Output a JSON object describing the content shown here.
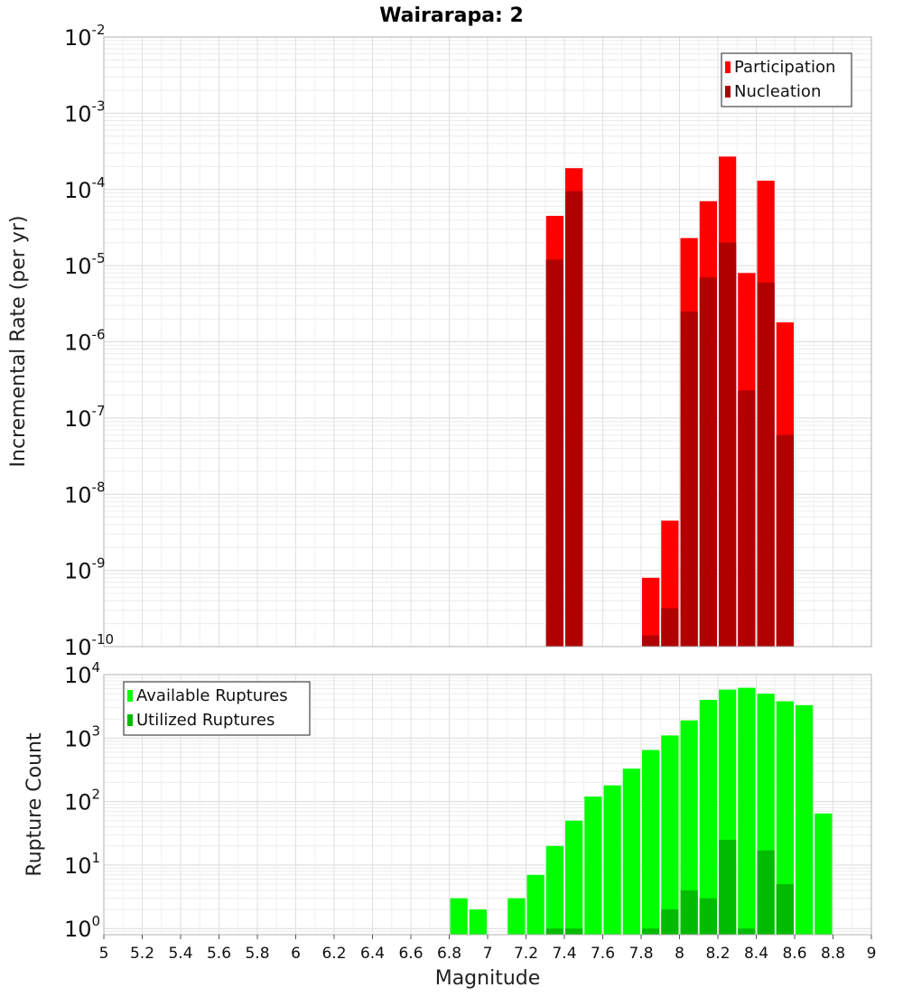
{
  "chart_data": [
    {
      "type": "bar",
      "title": "Wairarapa: 2",
      "ylabel": "Incremental Rate (per yr)",
      "xlabel": "",
      "yscale": "log",
      "ylim": [
        1e-10,
        0.01
      ],
      "xlim": [
        5,
        9
      ],
      "bin_width": 0.1,
      "grid": true,
      "legend_position": "top-right",
      "series": [
        {
          "name": "Participation",
          "color": "#ff0000",
          "x": [
            7.35,
            7.45,
            7.85,
            7.95,
            8.05,
            8.15,
            8.25,
            8.35,
            8.45,
            8.55
          ],
          "values": [
            4.5e-05,
            0.00019,
            8e-10,
            4.5e-09,
            2.3e-05,
            7e-05,
            0.00027,
            8e-06,
            0.00013,
            1.8e-06
          ]
        },
        {
          "name": "Nucleation",
          "color": "#b00000",
          "x": [
            7.35,
            7.45,
            7.85,
            7.95,
            8.05,
            8.15,
            8.25,
            8.35,
            8.45,
            8.55
          ],
          "values": [
            1.2e-05,
            9.5e-05,
            1.4e-10,
            3.2e-10,
            2.5e-06,
            7e-06,
            2e-05,
            2.3e-07,
            6e-06,
            6e-08
          ]
        }
      ]
    },
    {
      "type": "bar",
      "title": "",
      "ylabel": "Rupture Count",
      "xlabel": "Magnitude",
      "yscale": "log",
      "ylim": [
        0.8,
        10000
      ],
      "xlim": [
        5,
        9
      ],
      "bin_width": 0.1,
      "grid": true,
      "legend_position": "top-left",
      "x_ticks": [
        "5",
        "5.2",
        "5.4",
        "5.6",
        "5.8",
        "6",
        "6.2",
        "6.4",
        "6.6",
        "6.8",
        "7",
        "7.2",
        "7.4",
        "7.6",
        "7.8",
        "8",
        "8.2",
        "8.4",
        "8.6",
        "8.8",
        "9"
      ],
      "series": [
        {
          "name": "Available Ruptures",
          "color": "#00ff00",
          "x": [
            6.85,
            6.95,
            7.15,
            7.25,
            7.35,
            7.45,
            7.55,
            7.65,
            7.75,
            7.85,
            7.95,
            8.05,
            8.15,
            8.25,
            8.35,
            8.45,
            8.55,
            8.65,
            8.75
          ],
          "values": [
            3,
            2,
            3,
            7,
            20,
            50,
            120,
            180,
            330,
            650,
            1100,
            1900,
            4000,
            5800,
            6200,
            5000,
            3800,
            3300,
            65
          ]
        },
        {
          "name": "Utilized Ruptures",
          "color": "#00bb00",
          "x": [
            7.35,
            7.45,
            7.85,
            7.95,
            8.05,
            8.15,
            8.25,
            8.35,
            8.45,
            8.55
          ],
          "values": [
            1,
            1,
            1,
            2,
            4,
            3,
            25,
            1,
            17,
            5
          ]
        }
      ]
    }
  ]
}
